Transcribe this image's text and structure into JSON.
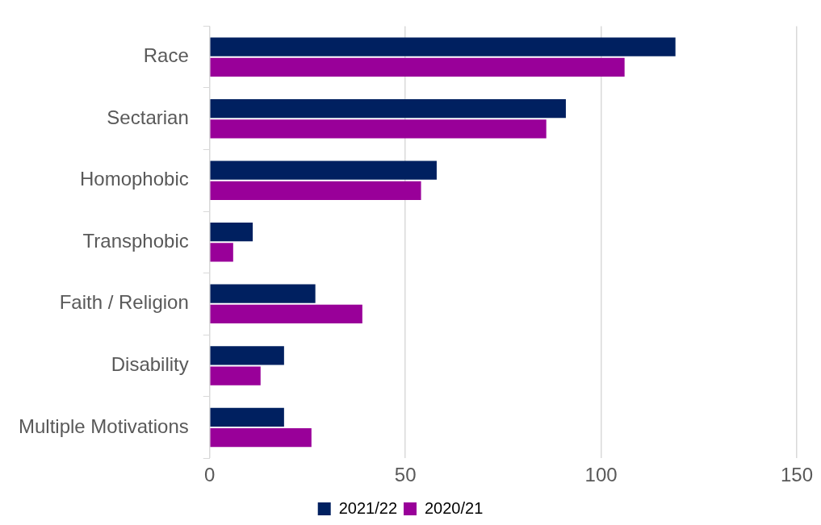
{
  "chart_data": {
    "type": "bar",
    "orientation": "horizontal",
    "categories": [
      "Race",
      "Sectarian",
      "Homophobic",
      "Transphobic",
      "Faith / Religion",
      "Disability",
      "Multiple Motivations"
    ],
    "series": [
      {
        "name": "2021/22",
        "color": "#002060",
        "values": [
          119,
          91,
          58,
          11,
          27,
          19,
          19
        ]
      },
      {
        "name": "2020/21",
        "color": "#990099",
        "values": [
          106,
          86,
          54,
          6,
          39,
          13,
          26
        ]
      }
    ],
    "xlim": [
      0,
      150
    ],
    "xticks": [
      0,
      50,
      100,
      150
    ],
    "grid": "x",
    "legend": "bottom"
  }
}
